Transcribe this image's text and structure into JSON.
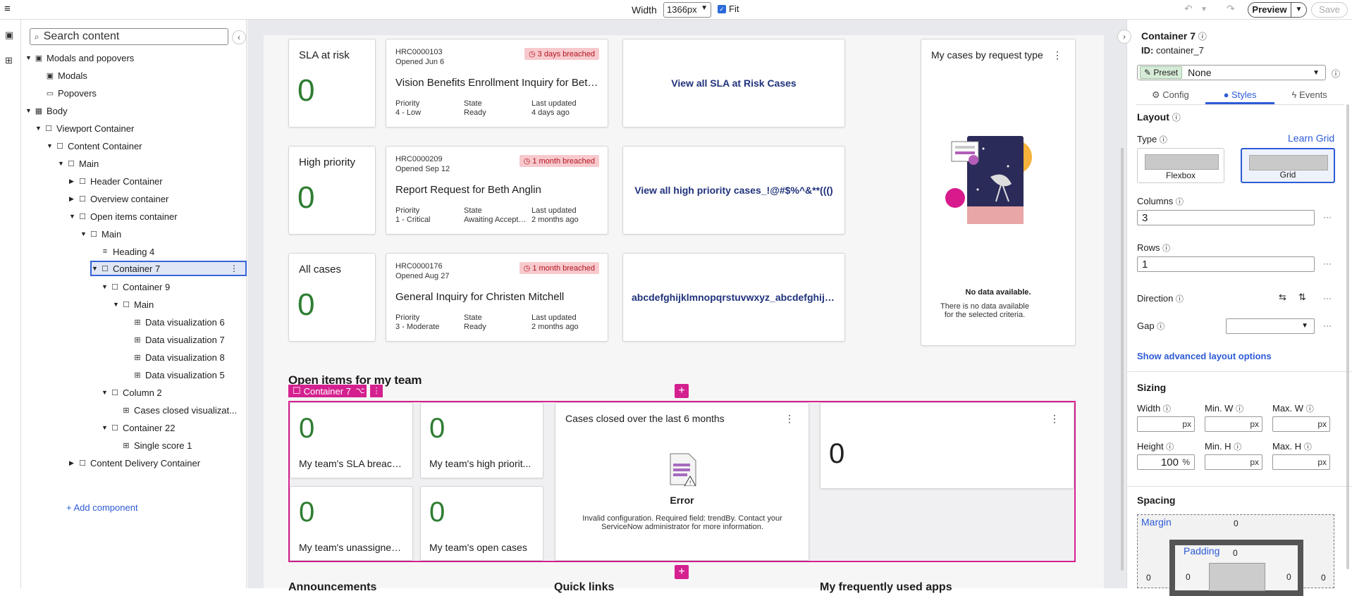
{
  "topbar": {
    "menu_icon": "hamburger-icon",
    "width_label": "Width",
    "width_value": "1366px",
    "fit_label": "Fit",
    "preview_label": "Preview",
    "save_label": "Save"
  },
  "tree": {
    "search_placeholder": "Search content",
    "nodes": [
      {
        "label": "Modals and popovers"
      },
      {
        "label": "Modals"
      },
      {
        "label": "Popovers"
      },
      {
        "label": "Body"
      },
      {
        "label": "Viewport Container"
      },
      {
        "label": "Content Container"
      },
      {
        "label": "Main"
      },
      {
        "label": "Header Container"
      },
      {
        "label": "Overview container"
      },
      {
        "label": "Open items container"
      },
      {
        "label": "Main"
      },
      {
        "label": "Heading 4"
      },
      {
        "label": "Container 7"
      },
      {
        "label": "Container 9"
      },
      {
        "label": "Main"
      },
      {
        "label": "Data visualization 6"
      },
      {
        "label": "Data visualization 7"
      },
      {
        "label": "Data visualization 8"
      },
      {
        "label": "Data visualization 5"
      },
      {
        "label": "Column 2"
      },
      {
        "label": "Cases closed visualizat..."
      },
      {
        "label": "Container 22"
      },
      {
        "label": "Single score 1"
      },
      {
        "label": "Content Delivery Container"
      }
    ],
    "add_component": "Add component"
  },
  "canvas": {
    "stats": [
      {
        "label": "SLA at risk",
        "value": "0"
      },
      {
        "label": "High priority",
        "value": "0"
      },
      {
        "label": "All cases",
        "value": "0"
      }
    ],
    "cases": [
      {
        "number": "HRC0000103",
        "opened": "Opened Jun 6",
        "badge": "3 days breached",
        "title": "Vision Benefits Enrollment Inquiry for Beth A...",
        "priority_label": "Priority",
        "priority": "4 - Low",
        "state_label": "State",
        "state": "Ready",
        "updated_label": "Last updated",
        "updated": "4 days ago"
      },
      {
        "number": "HRC0000209",
        "opened": "Opened Sep 12",
        "badge": "1 month breached",
        "title": "Report Request for Beth Anglin",
        "priority_label": "Priority",
        "priority": "1 - Critical",
        "state_label": "State",
        "state": "Awaiting Acceptan...",
        "updated_label": "Last updated",
        "updated": "2 months ago"
      },
      {
        "number": "HRC0000176",
        "opened": "Opened Aug 27",
        "badge": "1 month breached",
        "title": "General Inquiry for Christen Mitchell",
        "priority_label": "Priority",
        "priority": "3 - Moderate",
        "state_label": "State",
        "state": "Ready",
        "updated_label": "Last updated",
        "updated": "2 months ago"
      }
    ],
    "links": [
      {
        "label": "View all SLA at Risk Cases"
      },
      {
        "label": "View all high priority cases_!@#$%^&**((()"
      },
      {
        "label": "abcdefghijklmnopqrstuvwxyz_abcdefghijkl..."
      }
    ],
    "donut": {
      "title": "My cases by request type",
      "no_data": "No data available.",
      "no_data_detail": "There is no data available for the selected criteria."
    },
    "section_title": "Open items for my team",
    "selected_tag": "Container 7",
    "minis": [
      {
        "value": "0",
        "label": "My team's SLA breach..."
      },
      {
        "value": "0",
        "label": "My team's high priorit..."
      },
      {
        "value": "0",
        "label": "My team's unassigned..."
      },
      {
        "value": "0",
        "label": "My team's open cases"
      }
    ],
    "error_card": {
      "title": "Cases closed over the last 6 months",
      "heading": "Error",
      "message": "Invalid configuration. Required field: trendBy. Contact your ServiceNow administrator for more information."
    },
    "score_card": {
      "value": "0"
    },
    "bottom_headings": [
      "Announcements",
      "Quick links",
      "My frequently used apps"
    ]
  },
  "panel": {
    "title": "Container 7",
    "id_label": "ID:",
    "id_value": "container_7",
    "preset_tag": "Preset",
    "preset_value": "None",
    "tabs": [
      "Config",
      "Styles",
      "Events"
    ],
    "layout": {
      "heading": "Layout",
      "type_label": "Type",
      "learn_label": "Learn Grid",
      "flexbox": "Flexbox",
      "grid": "Grid",
      "columns_label": "Columns",
      "columns": "3",
      "rows_label": "Rows",
      "rows": "1",
      "direction_label": "Direction",
      "gap_label": "Gap",
      "advanced": "Show advanced layout options"
    },
    "sizing": {
      "heading": "Sizing",
      "width": "Width",
      "min_w": "Min. W",
      "max_w": "Max. W",
      "height": "Height",
      "min_h": "Min. H",
      "max_h": "Max. H",
      "height_value": "100",
      "px": "px",
      "pct": "%"
    },
    "spacing": {
      "heading": "Spacing",
      "margin": "Margin",
      "padding": "Padding",
      "m_top": "0",
      "p_top": "0",
      "m_left": "0",
      "p_left": "0",
      "p_right": "0",
      "m_right": "0"
    }
  }
}
